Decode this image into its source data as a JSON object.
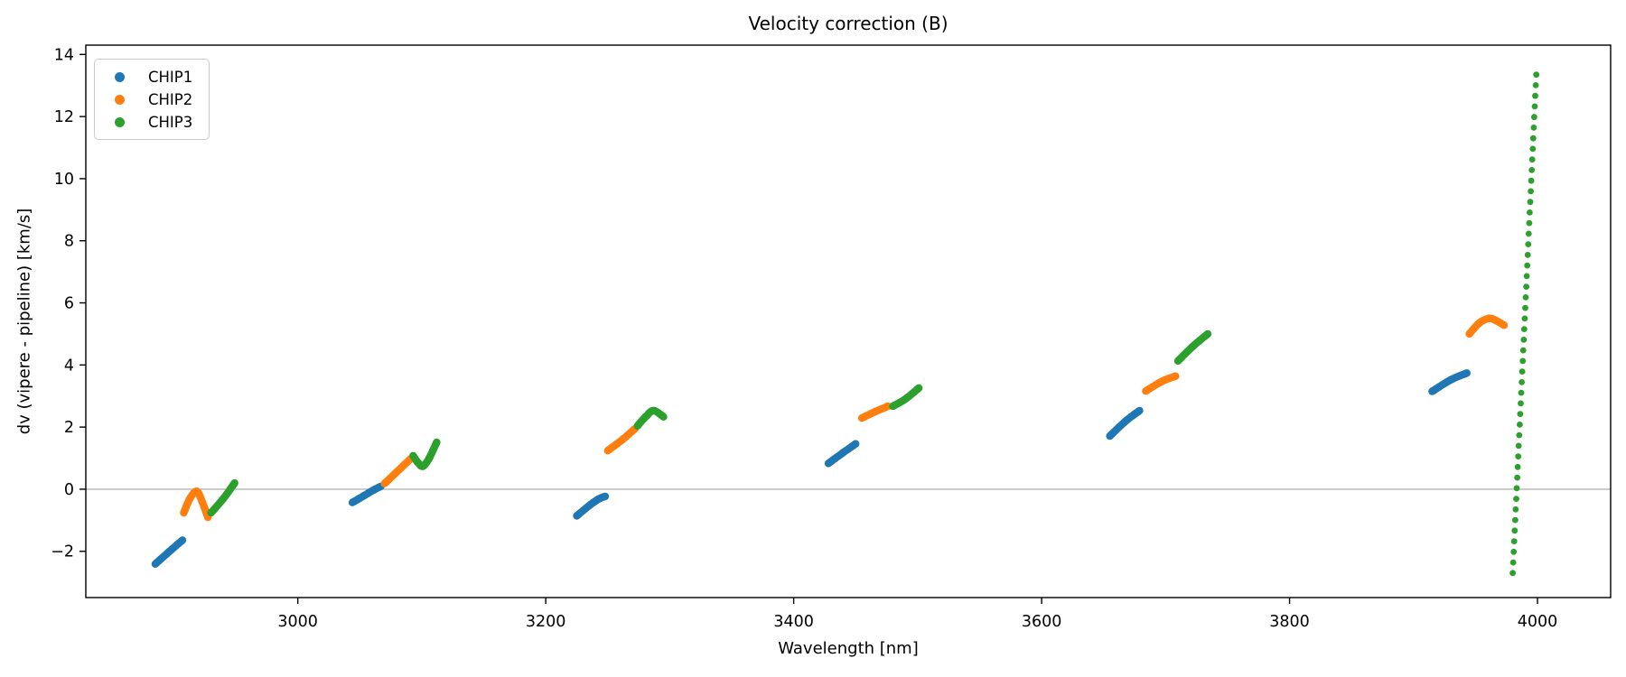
{
  "chart_data": {
    "type": "scatter",
    "title": "Velocity correction (B)",
    "xlabel": "Wavelength [nm]",
    "ylabel": "dv (vipere - pipeline) [km/s]",
    "xlim": [
      2829,
      4059
    ],
    "ylim": [
      -3.49,
      14.3
    ],
    "xticks": [
      3000,
      3200,
      3400,
      3600,
      3800,
      4000
    ],
    "yticks": [
      -2,
      0,
      2,
      4,
      6,
      8,
      10,
      12,
      14
    ],
    "grid": false,
    "zero_line": {
      "y": 0,
      "color": "#999999"
    },
    "legend_position": "upper-left",
    "series": [
      {
        "name": "CHIP1",
        "color": "#1f77b4",
        "segments": [
          {
            "style": "dense",
            "points": [
              [
                2885,
                -2.41
              ],
              [
                2896,
                -2.02
              ],
              [
                2907,
                -1.64
              ]
            ]
          },
          {
            "style": "dense",
            "points": [
              [
                3044,
                -0.43
              ],
              [
                3053,
                -0.22
              ],
              [
                3061,
                -0.03
              ],
              [
                3067,
                0.09
              ]
            ]
          },
          {
            "style": "dense",
            "points": [
              [
                3225,
                -0.86
              ],
              [
                3236,
                -0.5
              ],
              [
                3243,
                -0.31
              ],
              [
                3248,
                -0.23
              ]
            ]
          },
          {
            "style": "dense",
            "points": [
              [
                3428,
                0.83
              ],
              [
                3440,
                1.18
              ],
              [
                3450,
                1.46
              ]
            ]
          },
          {
            "style": "dense",
            "points": [
              [
                3655,
                1.71
              ],
              [
                3668,
                2.2
              ],
              [
                3679,
                2.53
              ]
            ]
          },
          {
            "style": "dense",
            "points": [
              [
                3915,
                3.15
              ],
              [
                3930,
                3.52
              ],
              [
                3943,
                3.74
              ]
            ]
          }
        ]
      },
      {
        "name": "CHIP2",
        "color": "#ff7f0e",
        "segments": [
          {
            "style": "dense",
            "points": [
              [
                2908,
                -0.76
              ],
              [
                2913,
                -0.3
              ],
              [
                2918.5,
                -0.07
              ],
              [
                2923,
                -0.42
              ],
              [
                2927.5,
                -0.91
              ]
            ]
          },
          {
            "style": "dense",
            "points": [
              [
                3070,
                0.18
              ],
              [
                3081,
                0.6
              ],
              [
                3091,
                0.98
              ]
            ]
          },
          {
            "style": "dense",
            "points": [
              [
                3250,
                1.24
              ],
              [
                3262,
                1.6
              ],
              [
                3272,
                1.95
              ]
            ]
          },
          {
            "style": "dense",
            "points": [
              [
                3455,
                2.29
              ],
              [
                3466,
                2.5
              ],
              [
                3476,
                2.67
              ]
            ]
          },
          {
            "style": "dense",
            "points": [
              [
                3684,
                3.16
              ],
              [
                3697,
                3.47
              ],
              [
                3708,
                3.64
              ]
            ]
          },
          {
            "style": "dense",
            "points": [
              [
                3945,
                5.0
              ],
              [
                3953,
                5.35
              ],
              [
                3961,
                5.5
              ],
              [
                3967,
                5.42
              ],
              [
                3973,
                5.28
              ]
            ]
          }
        ]
      },
      {
        "name": "CHIP3",
        "color": "#2ca02c",
        "segments": [
          {
            "style": "dense",
            "points": [
              [
                2930,
                -0.76
              ],
              [
                2940,
                -0.3
              ],
              [
                2949,
                0.2
              ]
            ]
          },
          {
            "style": "dense",
            "points": [
              [
                3093,
                1.08
              ],
              [
                3097,
                0.85
              ],
              [
                3101,
                0.74
              ],
              [
                3106,
                1.0
              ],
              [
                3112,
                1.51
              ]
            ]
          },
          {
            "style": "dense",
            "points": [
              [
                3274,
                2.04
              ],
              [
                3281,
                2.35
              ],
              [
                3287,
                2.53
              ],
              [
                3295,
                2.33
              ]
            ]
          },
          {
            "style": "dense",
            "points": [
              [
                3480,
                2.67
              ],
              [
                3490,
                2.9
              ],
              [
                3501,
                3.26
              ]
            ]
          },
          {
            "style": "dense",
            "points": [
              [
                3710,
                4.13
              ],
              [
                3722,
                4.6
              ],
              [
                3734,
                5.0
              ]
            ]
          },
          {
            "style": "dotted",
            "n_dots": 48,
            "points": [
              [
                3980,
                -2.7
              ],
              [
                3999,
                13.35
              ]
            ]
          }
        ]
      }
    ]
  }
}
